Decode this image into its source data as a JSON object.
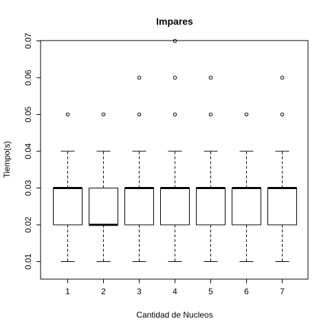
{
  "chart_data": {
    "type": "boxplot",
    "title": "Impares",
    "xlabel": "Cantidad de Nucleos",
    "ylabel": "Tiempo(s)",
    "categories": [
      "1",
      "2",
      "3",
      "4",
      "5",
      "6",
      "7"
    ],
    "yticks": [
      "0.01",
      "0.02",
      "0.03",
      "0.04",
      "0.05",
      "0.06",
      "0.07"
    ],
    "ylim": [
      0.0075,
      0.0725
    ],
    "boxes": [
      {
        "category": "1",
        "whisker_low": 0.01,
        "q1": 0.02,
        "median": 0.03,
        "q3": 0.03,
        "whisker_high": 0.04,
        "outliers": [
          0.05
        ]
      },
      {
        "category": "2",
        "whisker_low": 0.01,
        "q1": 0.02,
        "median": 0.02,
        "q3": 0.03,
        "whisker_high": 0.04,
        "outliers": [
          0.05
        ]
      },
      {
        "category": "3",
        "whisker_low": 0.01,
        "q1": 0.02,
        "median": 0.03,
        "q3": 0.03,
        "whisker_high": 0.04,
        "outliers": [
          0.05,
          0.06
        ]
      },
      {
        "category": "4",
        "whisker_low": 0.01,
        "q1": 0.02,
        "median": 0.03,
        "q3": 0.03,
        "whisker_high": 0.04,
        "outliers": [
          0.05,
          0.06,
          0.07
        ]
      },
      {
        "category": "5",
        "whisker_low": 0.01,
        "q1": 0.02,
        "median": 0.03,
        "q3": 0.03,
        "whisker_high": 0.04,
        "outliers": [
          0.05,
          0.06
        ]
      },
      {
        "category": "6",
        "whisker_low": 0.01,
        "q1": 0.02,
        "median": 0.03,
        "q3": 0.03,
        "whisker_high": 0.04,
        "outliers": [
          0.05
        ]
      },
      {
        "category": "7",
        "whisker_low": 0.01,
        "q1": 0.02,
        "median": 0.03,
        "q3": 0.03,
        "whisker_high": 0.04,
        "outliers": [
          0.05,
          0.06
        ]
      }
    ],
    "grid": false,
    "legend": "none"
  }
}
